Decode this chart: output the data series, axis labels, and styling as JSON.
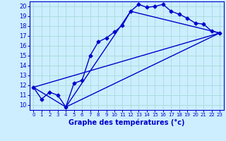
{
  "xlabel": "Graphe des températures (°c)",
  "background_color": "#cceeff",
  "grid_color": "#aadddd",
  "line_color": "#0000cc",
  "xlim": [
    -0.5,
    23.5
  ],
  "ylim": [
    9.5,
    20.5
  ],
  "xticks": [
    0,
    1,
    2,
    3,
    4,
    5,
    6,
    7,
    8,
    9,
    10,
    11,
    12,
    13,
    14,
    15,
    16,
    17,
    18,
    19,
    20,
    21,
    22,
    23
  ],
  "yticks": [
    10,
    11,
    12,
    13,
    14,
    15,
    16,
    17,
    18,
    19,
    20
  ],
  "series1_x": [
    0,
    1,
    2,
    3,
    4,
    5,
    6,
    7,
    8,
    9,
    10,
    11,
    12,
    13,
    14,
    15,
    16,
    17,
    18,
    19,
    20,
    21,
    22,
    23
  ],
  "series1_y": [
    11.8,
    10.6,
    11.3,
    11.0,
    9.8,
    12.2,
    12.5,
    15.0,
    16.4,
    16.8,
    17.4,
    18.1,
    19.5,
    20.2,
    19.9,
    20.0,
    20.2,
    19.5,
    19.2,
    18.8,
    18.3,
    18.2,
    17.5,
    17.3
  ],
  "series2_x": [
    0,
    4,
    23
  ],
  "series2_y": [
    11.8,
    9.8,
    17.3
  ],
  "series3_x": [
    0,
    23
  ],
  "series3_y": [
    11.8,
    17.3
  ],
  "series4_x": [
    4,
    12,
    23
  ],
  "series4_y": [
    9.8,
    19.5,
    17.3
  ]
}
